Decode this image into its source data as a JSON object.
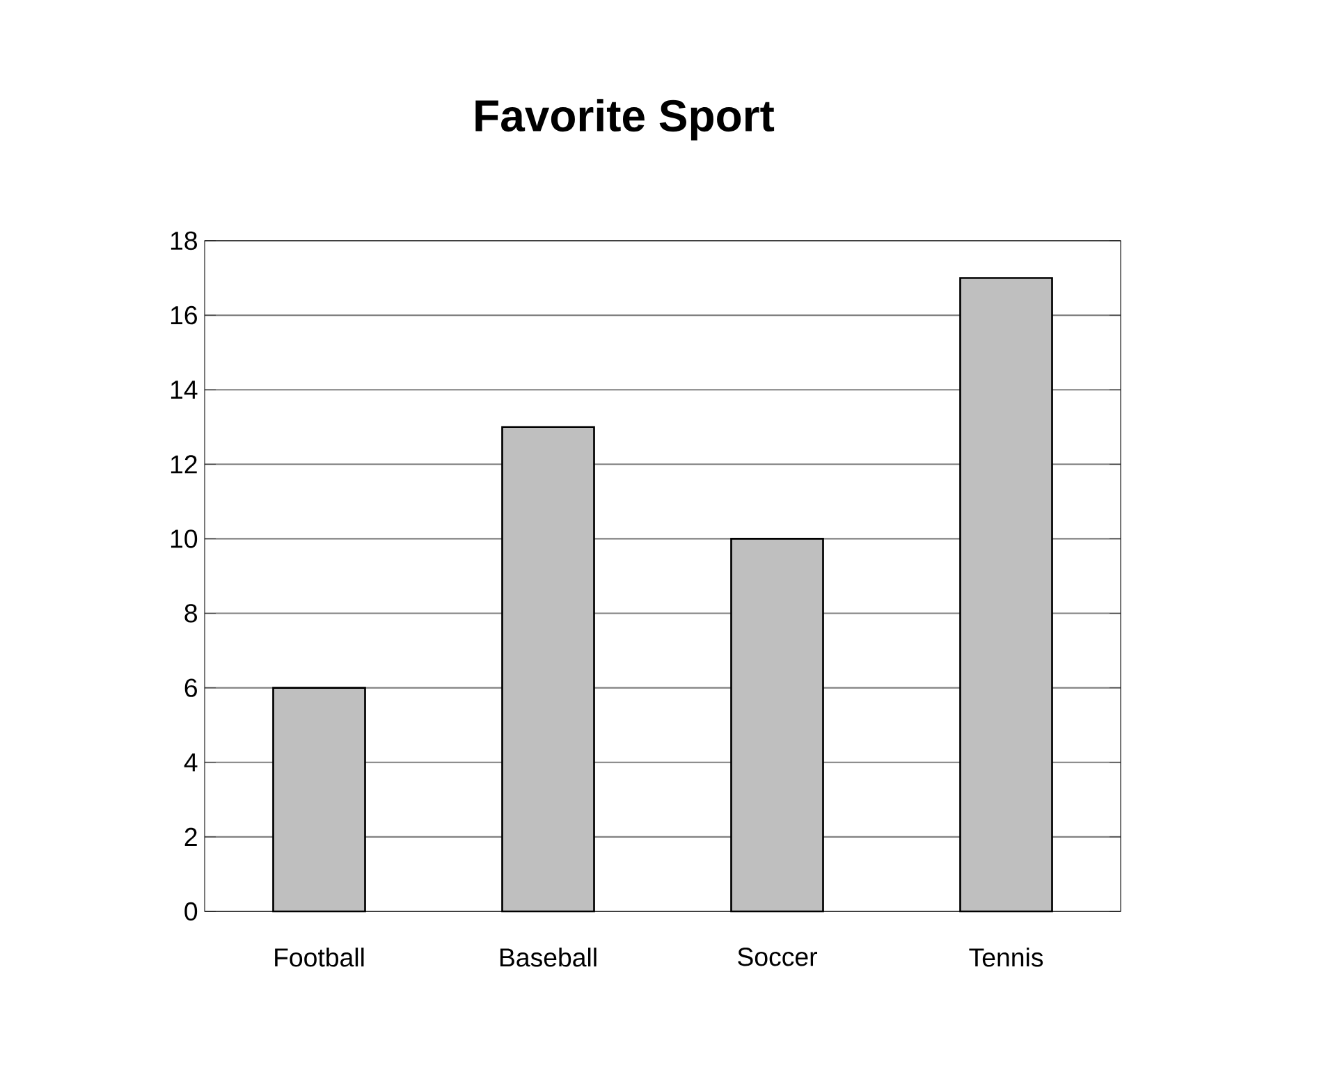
{
  "chart_data": {
    "type": "bar",
    "title": "Favorite Sport",
    "categories": [
      "Football",
      "Baseball",
      "Soccer",
      "Tennis"
    ],
    "values": [
      6,
      13,
      10,
      17
    ],
    "color": "#bfbfbf",
    "ylim": [
      0,
      18
    ],
    "yticks": [
      0,
      2,
      4,
      6,
      8,
      10,
      12,
      14,
      16,
      18
    ],
    "grid": "y"
  }
}
